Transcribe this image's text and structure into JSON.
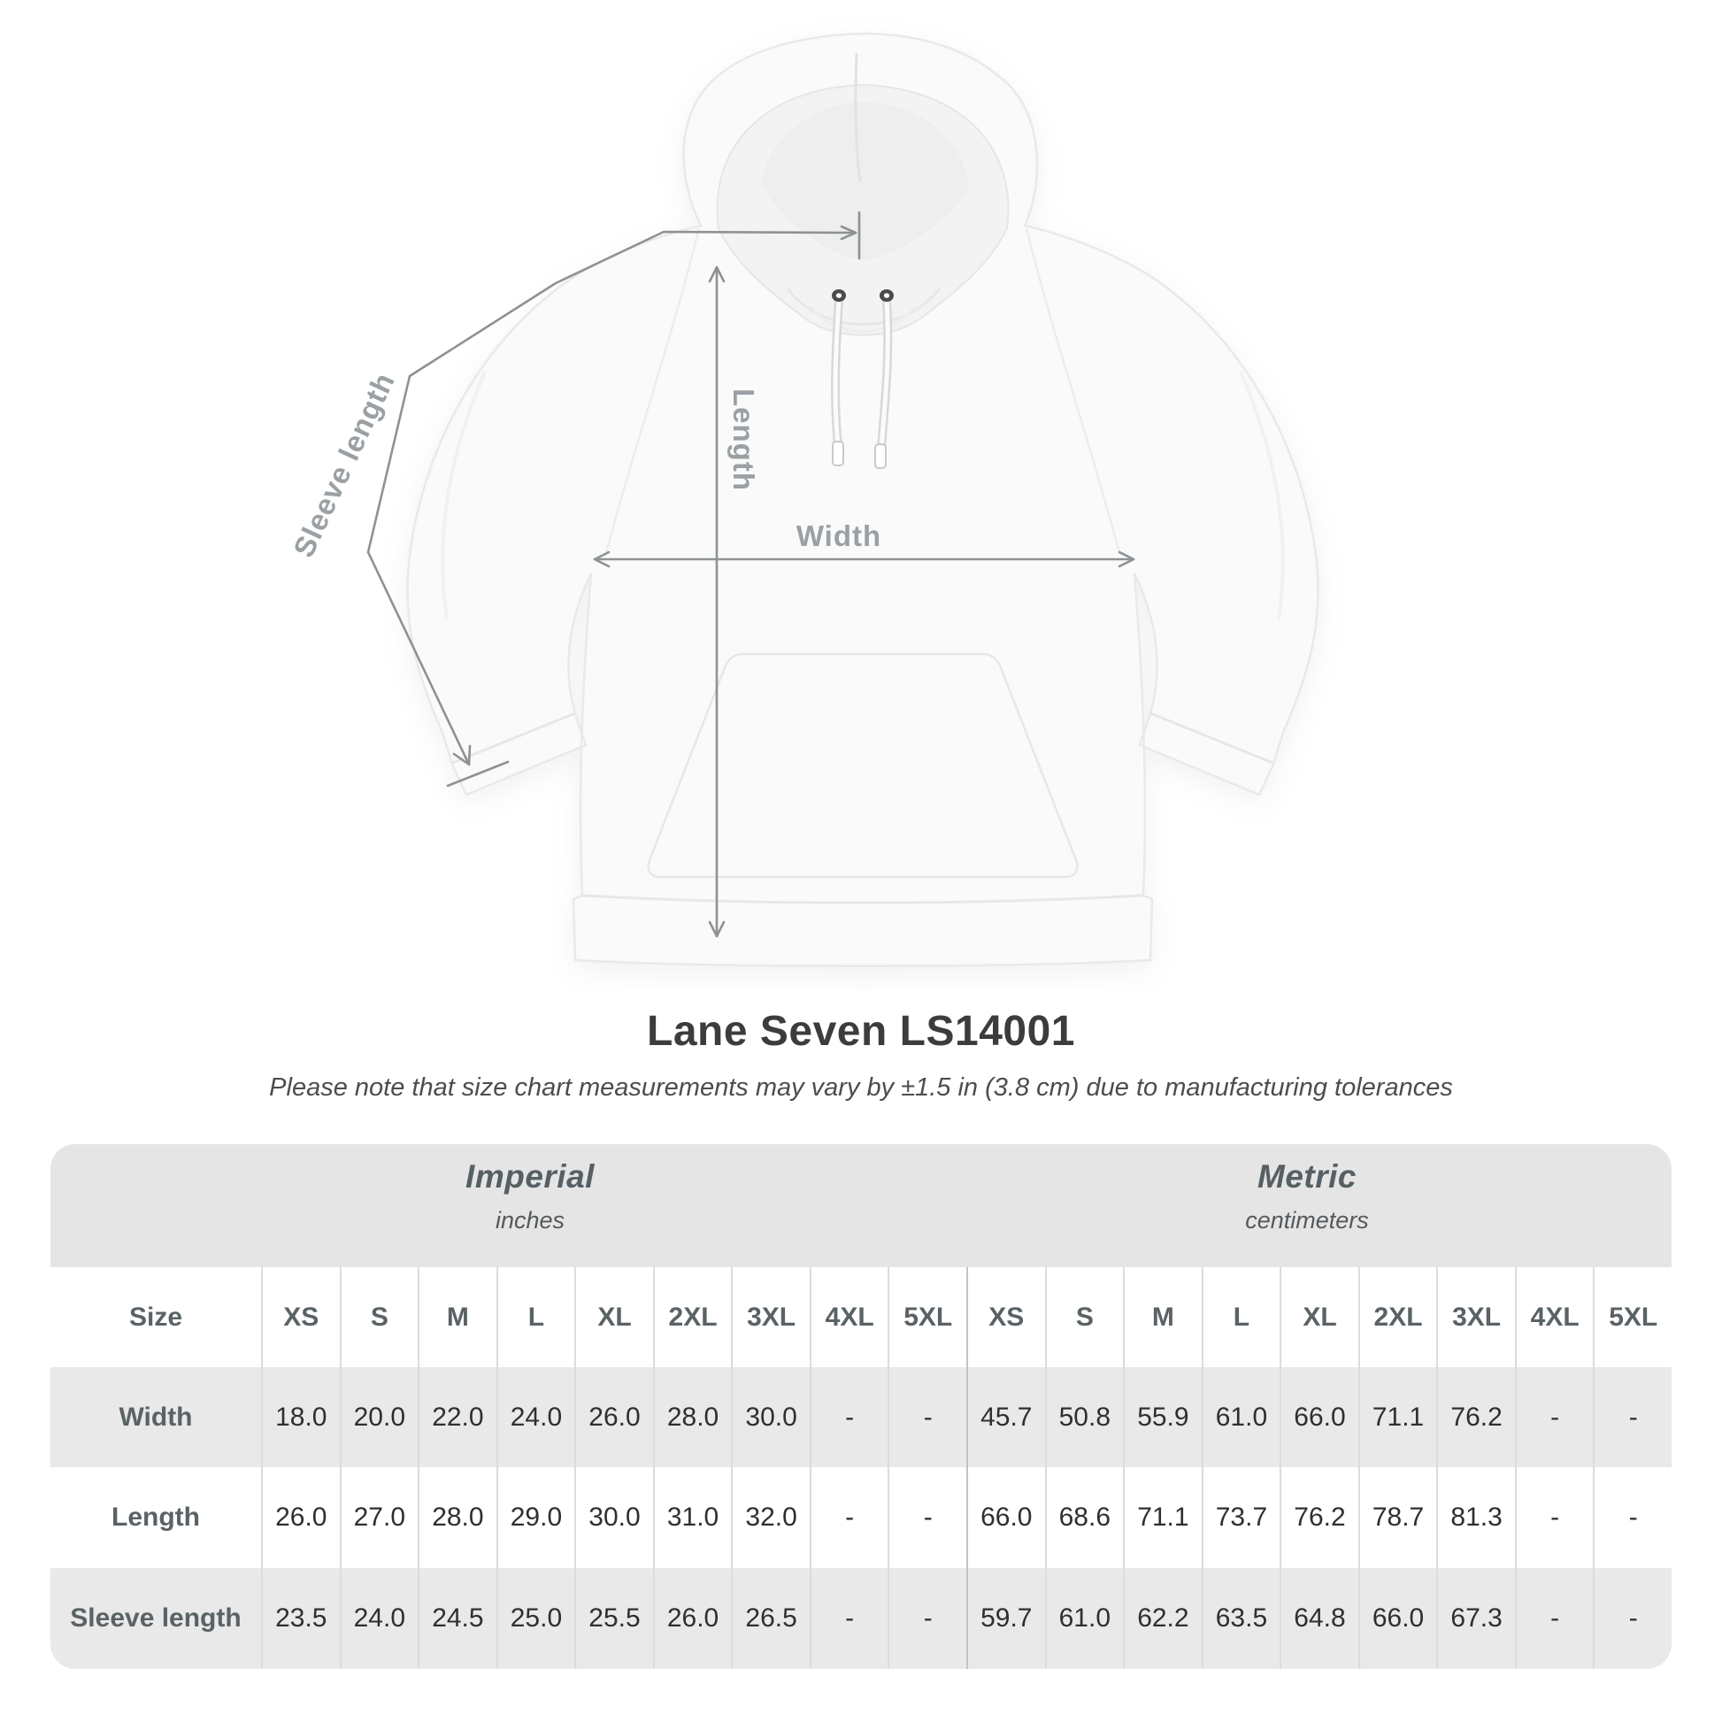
{
  "figure": {
    "labels": {
      "sleeve_length": "Sleeve length",
      "length": "Length",
      "width": "Width"
    },
    "annotation_color": "#8d9295",
    "label_color": "#9aa0a3"
  },
  "title": "Lane Seven LS14001",
  "note": "Please note that size chart measurements may vary by ±1.5 in (3.8 cm) due to manufacturing tolerances",
  "table": {
    "unit_groups": [
      {
        "name": "Imperial",
        "unit": "inches"
      },
      {
        "name": "Metric",
        "unit": "centimeters"
      }
    ],
    "size_label": "Size",
    "sizes": [
      "XS",
      "S",
      "M",
      "L",
      "XL",
      "2XL",
      "3XL",
      "4XL",
      "5XL"
    ],
    "rows": [
      {
        "label": "Width",
        "imperial": [
          "18.0",
          "20.0",
          "22.0",
          "24.0",
          "26.0",
          "28.0",
          "30.0",
          "-",
          "-"
        ],
        "metric": [
          "45.7",
          "50.8",
          "55.9",
          "61.0",
          "66.0",
          "71.1",
          "76.2",
          "-",
          "-"
        ]
      },
      {
        "label": "Length",
        "imperial": [
          "26.0",
          "27.0",
          "28.0",
          "29.0",
          "30.0",
          "31.0",
          "32.0",
          "-",
          "-"
        ],
        "metric": [
          "66.0",
          "68.6",
          "71.1",
          "73.7",
          "76.2",
          "78.7",
          "81.3",
          "-",
          "-"
        ]
      },
      {
        "label": "Sleeve length",
        "imperial": [
          "23.5",
          "24.0",
          "24.5",
          "25.0",
          "25.5",
          "26.0",
          "26.5",
          "-",
          "-"
        ],
        "metric": [
          "59.7",
          "61.0",
          "62.2",
          "63.5",
          "64.8",
          "66.0",
          "67.3",
          "-",
          "-"
        ]
      }
    ]
  },
  "chart_data": {
    "type": "table",
    "title": "Lane Seven LS14001",
    "note": "Measurements may vary by ±1.5 in (3.8 cm) due to manufacturing tolerances",
    "unit_systems": [
      {
        "name": "Imperial",
        "unit": "inches"
      },
      {
        "name": "Metric",
        "unit": "centimeters"
      }
    ],
    "sizes": [
      "XS",
      "S",
      "M",
      "L",
      "XL",
      "2XL",
      "3XL",
      "4XL",
      "5XL"
    ],
    "measurements": [
      {
        "name": "Width",
        "inches": [
          18.0,
          20.0,
          22.0,
          24.0,
          26.0,
          28.0,
          30.0,
          null,
          null
        ],
        "centimeters": [
          45.7,
          50.8,
          55.9,
          61.0,
          66.0,
          71.1,
          76.2,
          null,
          null
        ]
      },
      {
        "name": "Length",
        "inches": [
          26.0,
          27.0,
          28.0,
          29.0,
          30.0,
          31.0,
          32.0,
          null,
          null
        ],
        "centimeters": [
          66.0,
          68.6,
          71.1,
          73.7,
          76.2,
          78.7,
          81.3,
          null,
          null
        ]
      },
      {
        "name": "Sleeve length",
        "inches": [
          23.5,
          24.0,
          24.5,
          25.0,
          25.5,
          26.0,
          26.5,
          null,
          null
        ],
        "centimeters": [
          59.7,
          61.0,
          62.2,
          63.5,
          64.8,
          66.0,
          67.3,
          null,
          null
        ]
      }
    ]
  }
}
